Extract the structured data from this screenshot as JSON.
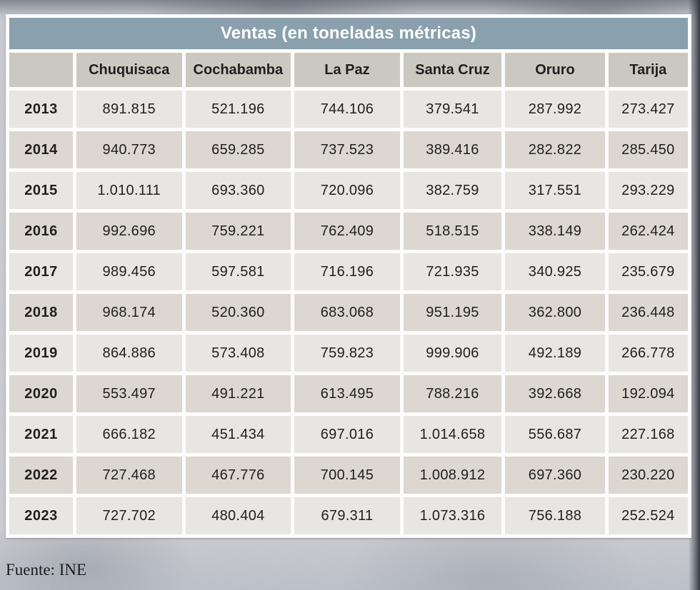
{
  "table": {
    "title": "Ventas (en toneladas métricas)",
    "corner_label": "",
    "columns": [
      "Chuquisaca",
      "Cochabamba",
      "La Paz",
      "Santa Cruz",
      "Oruro",
      "Tarija"
    ],
    "rows": [
      {
        "year": "2013",
        "values": [
          "891.815",
          "521.196",
          "744.106",
          "379.541",
          "287.992",
          "273.427"
        ]
      },
      {
        "year": "2014",
        "values": [
          "940.773",
          "659.285",
          "737.523",
          "389.416",
          "282.822",
          "285.450"
        ]
      },
      {
        "year": "2015",
        "values": [
          "1.010.111",
          "693.360",
          "720.096",
          "382.759",
          "317.551",
          "293.229"
        ]
      },
      {
        "year": "2016",
        "values": [
          "992.696",
          "759.221",
          "762.409",
          "518.515",
          "338.149",
          "262.424"
        ]
      },
      {
        "year": "2017",
        "values": [
          "989.456",
          "597.581",
          "716.196",
          "721.935",
          "340.925",
          "235.679"
        ]
      },
      {
        "year": "2018",
        "values": [
          "968.174",
          "520.360",
          "683.068",
          "951.195",
          "362.800",
          "236.448"
        ]
      },
      {
        "year": "2019",
        "values": [
          "864.886",
          "573.408",
          "759.823",
          "999.906",
          "492.189",
          "266.778"
        ]
      },
      {
        "year": "2020",
        "values": [
          "553.497",
          "491.221",
          "613.495",
          "788.216",
          "392.668",
          "192.094"
        ]
      },
      {
        "year": "2021",
        "values": [
          "666.182",
          "451.434",
          "697.016",
          "1.014.658",
          "556.687",
          "227.168"
        ]
      },
      {
        "year": "2022",
        "values": [
          "727.468",
          "467.776",
          "700.145",
          "1.008.912",
          "697.360",
          "230.220"
        ]
      },
      {
        "year": "2023",
        "values": [
          "727.702",
          "480.404",
          "679.311",
          "1.073.316",
          "756.188",
          "252.524"
        ]
      }
    ],
    "source": "Fuente: INE"
  },
  "colors": {
    "title_bar": "#8aa0ac",
    "header_cell": "#cbc8c2",
    "row_odd": "#e8e6e3",
    "row_even": "#dcd7d1",
    "frame": "#fcfcfc",
    "text": "#1f1f1f",
    "title_text": "#ffffff"
  },
  "chart_data": {
    "type": "table",
    "title": "Ventas (en toneladas métricas)",
    "unit": "toneladas métricas",
    "columns": [
      "Chuquisaca",
      "Cochabamba",
      "La Paz",
      "Santa Cruz",
      "Oruro",
      "Tarija"
    ],
    "years": [
      2013,
      2014,
      2015,
      2016,
      2017,
      2018,
      2019,
      2020,
      2021,
      2022,
      2023
    ],
    "series": [
      {
        "name": "Chuquisaca",
        "values": [
          891815,
          940773,
          1010111,
          992696,
          989456,
          968174,
          864886,
          553497,
          666182,
          727468,
          727702
        ]
      },
      {
        "name": "Cochabamba",
        "values": [
          521196,
          659285,
          693360,
          759221,
          597581,
          520360,
          573408,
          491221,
          451434,
          467776,
          480404
        ]
      },
      {
        "name": "La Paz",
        "values": [
          744106,
          737523,
          720096,
          762409,
          716196,
          683068,
          759823,
          613495,
          697016,
          700145,
          679311
        ]
      },
      {
        "name": "Santa Cruz",
        "values": [
          379541,
          389416,
          382759,
          518515,
          721935,
          951195,
          999906,
          788216,
          1014658,
          1008912,
          1073316
        ]
      },
      {
        "name": "Oruro",
        "values": [
          287992,
          282822,
          317551,
          338149,
          340925,
          362800,
          492189,
          392668,
          556687,
          697360,
          756188
        ]
      },
      {
        "name": "Tarija",
        "values": [
          273427,
          285450,
          293229,
          262424,
          235679,
          236448,
          266778,
          192094,
          227168,
          230220,
          252524
        ]
      }
    ],
    "source": "Fuente: INE"
  }
}
